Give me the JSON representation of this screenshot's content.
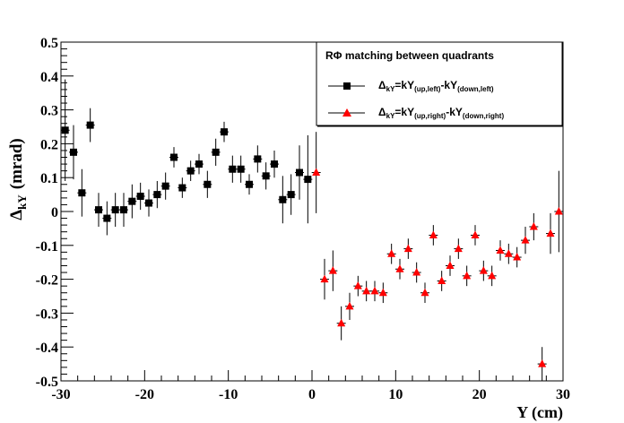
{
  "chart_data": {
    "type": "scatter",
    "xlabel": "Y (cm)",
    "ylabel": "Δ",
    "ylabel_sub": "kY",
    "ylabel_unit": "(mrad)",
    "xlim": [
      -30,
      30
    ],
    "ylim": [
      -0.5,
      0.5
    ],
    "x_ticks": [
      -30,
      -20,
      -10,
      0,
      10,
      20,
      30
    ],
    "y_ticks": [
      -0.5,
      -0.4,
      -0.3,
      -0.2,
      -0.1,
      0,
      0.1,
      0.2,
      0.3,
      0.4,
      0.5
    ],
    "x_tick_labels": [
      "-30",
      "-20",
      "-10",
      "0",
      "10",
      "20",
      "30"
    ],
    "y_tick_labels": [
      "-0.5",
      "-0.4",
      "-0.3",
      "-0.2",
      "-0.1",
      "0",
      "0.1",
      "0.2",
      "0.3",
      "0.4",
      "0.5"
    ],
    "grid": false,
    "legend": {
      "position": "top-right",
      "title": "RΦ matching between quadrants",
      "entries": [
        {
          "main": "Δ",
          "sub1": "kY",
          "mid1": "=kY",
          "sub2": "(up,left)",
          "mid2": "-kY",
          "sub3": "(down,left)"
        },
        {
          "main": "Δ",
          "sub1": "kY",
          "mid1": "=kY",
          "sub2": "(up,right)",
          "mid2": "-kY",
          "sub3": "(down,right)"
        }
      ]
    },
    "series": [
      {
        "marker": "square",
        "color": "#000000",
        "x": [
          -29.5,
          -28.5,
          -27.5,
          -26.5,
          -25.5,
          -24.5,
          -23.5,
          -22.5,
          -21.5,
          -20.5,
          -19.5,
          -18.5,
          -17.5,
          -16.5,
          -15.5,
          -14.5,
          -13.5,
          -12.5,
          -11.5,
          -10.5,
          -9.5,
          -8.5,
          -7.5,
          -6.5,
          -5.5,
          -4.5,
          -3.5,
          -2.5,
          -1.5,
          -0.5
        ],
        "y": [
          0.24,
          0.175,
          0.055,
          0.255,
          0.005,
          -0.02,
          0.005,
          0.005,
          0.03,
          0.045,
          0.025,
          0.05,
          0.075,
          0.16,
          0.07,
          0.12,
          0.14,
          0.08,
          0.175,
          0.235,
          0.125,
          0.125,
          0.08,
          0.155,
          0.105,
          0.14,
          0.035,
          0.05,
          0.115,
          0.095
        ],
        "err": [
          0.15,
          0.08,
          0.07,
          0.05,
          0.05,
          0.05,
          0.05,
          0.05,
          0.05,
          0.04,
          0.04,
          0.04,
          0.04,
          0.03,
          0.03,
          0.03,
          0.03,
          0.04,
          0.04,
          0.03,
          0.04,
          0.04,
          0.03,
          0.04,
          0.04,
          0.04,
          0.07,
          0.06,
          0.08,
          0.13
        ]
      },
      {
        "marker": "triangle",
        "color": "#ff0000",
        "x": [
          0.5,
          1.5,
          2.5,
          3.5,
          4.5,
          5.5,
          6.5,
          7.5,
          8.5,
          9.5,
          10.5,
          11.5,
          12.5,
          13.5,
          14.5,
          15.5,
          16.5,
          17.5,
          18.5,
          19.5,
          20.5,
          21.5,
          22.5,
          23.5,
          24.5,
          25.5,
          26.5,
          27.5,
          28.5,
          29.5
        ],
        "y": [
          0.115,
          -0.2,
          -0.175,
          -0.33,
          -0.28,
          -0.22,
          -0.235,
          -0.235,
          -0.24,
          -0.125,
          -0.17,
          -0.11,
          -0.18,
          -0.24,
          -0.07,
          -0.205,
          -0.16,
          -0.11,
          -0.19,
          -0.07,
          -0.175,
          -0.19,
          -0.115,
          -0.125,
          -0.135,
          -0.085,
          -0.045,
          -0.45,
          -0.065,
          0.0
        ],
        "err": [
          0.12,
          0.06,
          0.06,
          0.05,
          0.04,
          0.03,
          0.03,
          0.03,
          0.03,
          0.03,
          0.03,
          0.03,
          0.03,
          0.03,
          0.03,
          0.03,
          0.03,
          0.03,
          0.03,
          0.03,
          0.03,
          0.03,
          0.03,
          0.03,
          0.03,
          0.04,
          0.04,
          0.05,
          0.06,
          0.12
        ]
      }
    ]
  }
}
